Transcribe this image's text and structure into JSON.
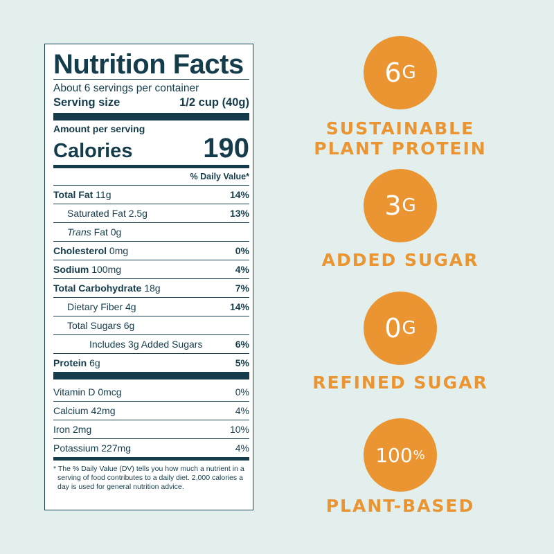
{
  "label": {
    "title": "Nutrition Facts",
    "servings": "About 6 servings per container",
    "serving_size_label": "Serving size",
    "serving_size_value": "1/2 cup (40g)",
    "amount_per_serving": "Amount per serving",
    "calories_label": "Calories",
    "calories_value": "190",
    "dv_header": "% Daily Value*",
    "nutrients": [
      {
        "bold": "Total Fat",
        "amount": " 11g",
        "pct": "14%"
      },
      {
        "bold": "",
        "amount": "Saturated Fat 2.5g",
        "pct": "13%"
      },
      {
        "italic": "Trans",
        "amount": " Fat 0g",
        "pct": ""
      },
      {
        "bold": "Cholesterol",
        "amount": " 0mg",
        "pct": "0%"
      },
      {
        "bold": "Sodium",
        "amount": " 100mg",
        "pct": "4%"
      },
      {
        "bold": "Total Carbohydrate",
        "amount": " 18g",
        "pct": "7%"
      },
      {
        "bold": "",
        "amount": "Dietary Fiber 4g",
        "pct": "14%"
      },
      {
        "bold": "",
        "amount": "Total Sugars 6g",
        "pct": ""
      },
      {
        "bold": "",
        "amount": "Includes 3g Added Sugars",
        "pct": "6%"
      },
      {
        "bold": "Protein",
        "amount": " 6g",
        "pct": "5%"
      }
    ],
    "vitamins": [
      {
        "name": "Vitamin D 0mcg",
        "pct": "0%"
      },
      {
        "name": "Calcium 42mg",
        "pct": "4%"
      },
      {
        "name": "Iron 2mg",
        "pct": "10%"
      },
      {
        "name": "Potassium 227mg",
        "pct": "4%"
      }
    ],
    "footnote": "* The % Daily Value (DV) tells you how much a nutrient in a serving of food contributes to a daily diet. 2,000 calories a day is used for general nutrition advice."
  },
  "badges": [
    {
      "number": "6",
      "unit": "G",
      "line1": "SUSTAINABLE",
      "line2": "PLANT PROTEIN"
    },
    {
      "number": "3",
      "unit": "G",
      "line1": "ADDED SUGAR",
      "line2": ""
    },
    {
      "number": "0",
      "unit": "G",
      "line1": "REFINED SUGAR",
      "line2": ""
    },
    {
      "number": "100",
      "unit": "%",
      "line1": "PLANT-BASED",
      "line2": ""
    }
  ],
  "colors": {
    "background": "#e2efed",
    "label_ink": "#143c4b",
    "accent_orange": "#eb9532"
  }
}
